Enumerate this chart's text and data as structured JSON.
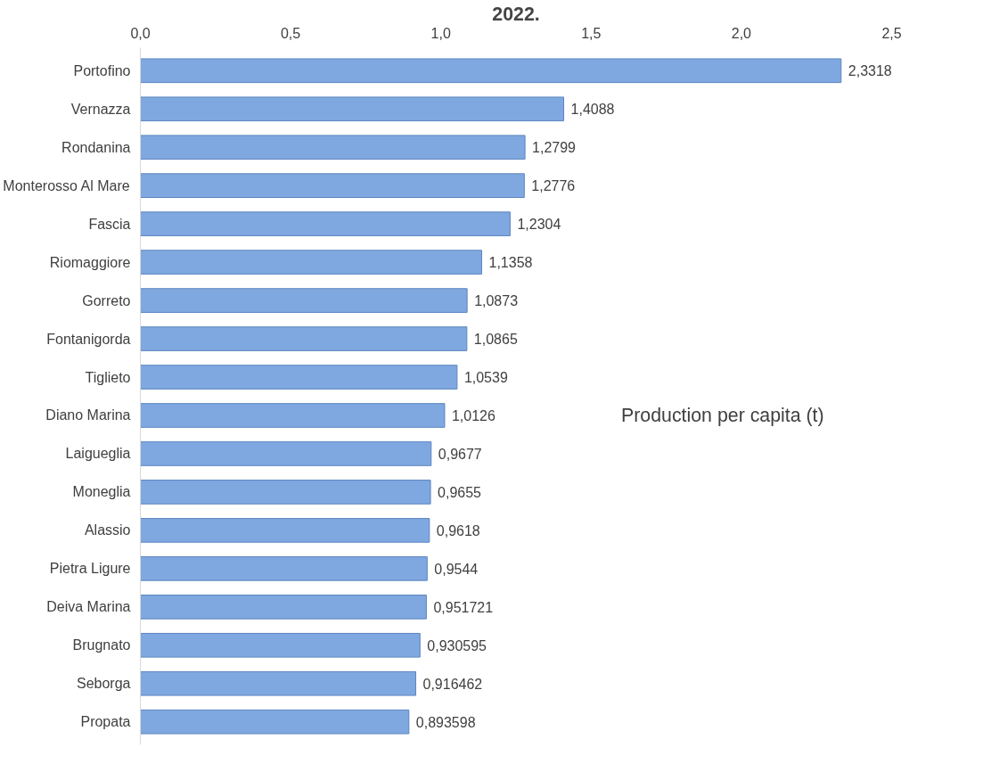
{
  "chart_data": {
    "type": "bar",
    "orientation": "horizontal",
    "title": "2022.",
    "categories": [
      "Portofino",
      "Vernazza",
      "Rondanina",
      "Monterosso Al Mare",
      "Fascia",
      "Riomaggiore",
      "Gorreto",
      "Fontanigorda",
      "Tiglieto",
      "Diano Marina",
      "Laigueglia",
      "Moneglia",
      "Alassio",
      "Pietra Ligure",
      "Deiva Marina",
      "Brugnato",
      "Seborga",
      "Propata"
    ],
    "values": [
      2.3318,
      1.4088,
      1.2799,
      1.2776,
      1.2304,
      1.1358,
      1.0873,
      1.0865,
      1.0539,
      1.0126,
      0.9677,
      0.9655,
      0.9618,
      0.9544,
      0.951721,
      0.930595,
      0.916462,
      0.893598
    ],
    "value_labels": [
      "2,3318",
      "1,4088",
      "1,2799",
      "1,2776",
      "1,2304",
      "1,1358",
      "1,0873",
      "1,0865",
      "1,0539",
      "1,0126",
      "0,9677",
      "0,9655",
      "0,9618",
      "0,9544",
      "0,951721",
      "0,930595",
      "0,916462",
      "0,893598"
    ],
    "color": "#7fa8e0",
    "xlim": [
      0,
      2.5
    ],
    "xticks": [
      {
        "value": 0,
        "label": "0,0"
      },
      {
        "value": 0.5,
        "label": "0,5"
      },
      {
        "value": 1,
        "label": "1,0"
      },
      {
        "value": 1.5,
        "label": "1,5"
      },
      {
        "value": 2,
        "label": "2,0"
      },
      {
        "value": 2.5,
        "label": "2,5"
      }
    ],
    "annotations": [
      "Production per capita (t)"
    ],
    "grid": false
  }
}
